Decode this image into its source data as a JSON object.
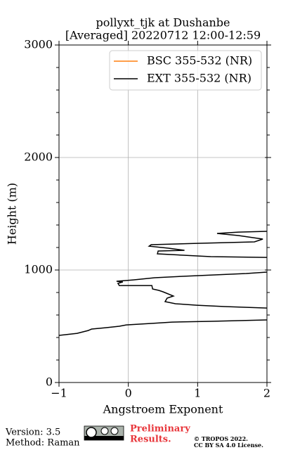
{
  "chart_data": {
    "type": "profile",
    "title": "pollyxt_tjk at Dushanbe",
    "subtitle": "[Averaged] 20220712 12:00-12:59",
    "x_label": "Angstroem Exponent",
    "y_label": "Height (m)",
    "xlim": [
      -1,
      2
    ],
    "xticks": [
      {
        "value": -1,
        "label": "−1"
      },
      0,
      1,
      2
    ],
    "ylim": [
      0,
      3000
    ],
    "yticks": [
      0,
      1000,
      2000,
      3000
    ],
    "yminorticks": [
      200,
      400,
      600,
      800,
      1200,
      1400,
      1600,
      1800,
      2200,
      2400,
      2600,
      2800
    ],
    "grid": true,
    "legend": "upper right",
    "y": [
      419,
      437,
      462,
      475,
      487,
      500,
      512,
      525,
      537,
      544,
      556,
      600,
      662,
      675,
      687,
      700,
      719,
      750,
      769,
      794,
      806,
      819,
      831,
      862,
      862,
      862,
      881,
      894,
      900,
      912,
      931,
      944,
      969,
      981,
      1040,
      1112,
      1119,
      1144,
      1169,
      1175,
      1194,
      1212,
      1225,
      1237,
      1250,
      1275,
      1306,
      1325,
      1337,
      1344
    ],
    "series": [
      {
        "name": "BSC 355-532 (NR)",
        "color": "#ff7f0e",
        "values": [
          null,
          null,
          null,
          null,
          null,
          null,
          null,
          null,
          null,
          null,
          null,
          null,
          null,
          null,
          null,
          null,
          null,
          null,
          null,
          null,
          null,
          null,
          null,
          null,
          null,
          null,
          null,
          null,
          null,
          null,
          null,
          null,
          null,
          null,
          null,
          null,
          null,
          null,
          null,
          null,
          null,
          null,
          null,
          null,
          null,
          null,
          null,
          null,
          null,
          null
        ]
      },
      {
        "name": "EXT 355-532 (NR)",
        "color": "#000000",
        "values": [
          -1.0,
          -0.74,
          -0.58,
          -0.53,
          -0.33,
          -0.13,
          -0.03,
          0.33,
          0.63,
          1.19,
          2.0,
          null,
          2.0,
          1.39,
          0.99,
          0.68,
          0.53,
          0.56,
          0.65,
          0.55,
          0.5,
          0.44,
          0.35,
          0.34,
          0.16,
          -0.13,
          -0.15,
          -0.08,
          -0.17,
          0.07,
          0.38,
          0.78,
          1.7,
          2.0,
          null,
          2.0,
          1.19,
          0.42,
          0.43,
          0.81,
          0.58,
          0.3,
          0.33,
          0.99,
          1.82,
          1.94,
          1.59,
          1.28,
          1.59,
          2.0
        ]
      }
    ]
  },
  "footer": {
    "version": "Version: 3.5",
    "method": "Method: Raman",
    "preliminary": [
      "Preliminary",
      "Results."
    ],
    "copyright": [
      "© TROPOS 2022.",
      "CC BY SA 4.0 License."
    ]
  }
}
